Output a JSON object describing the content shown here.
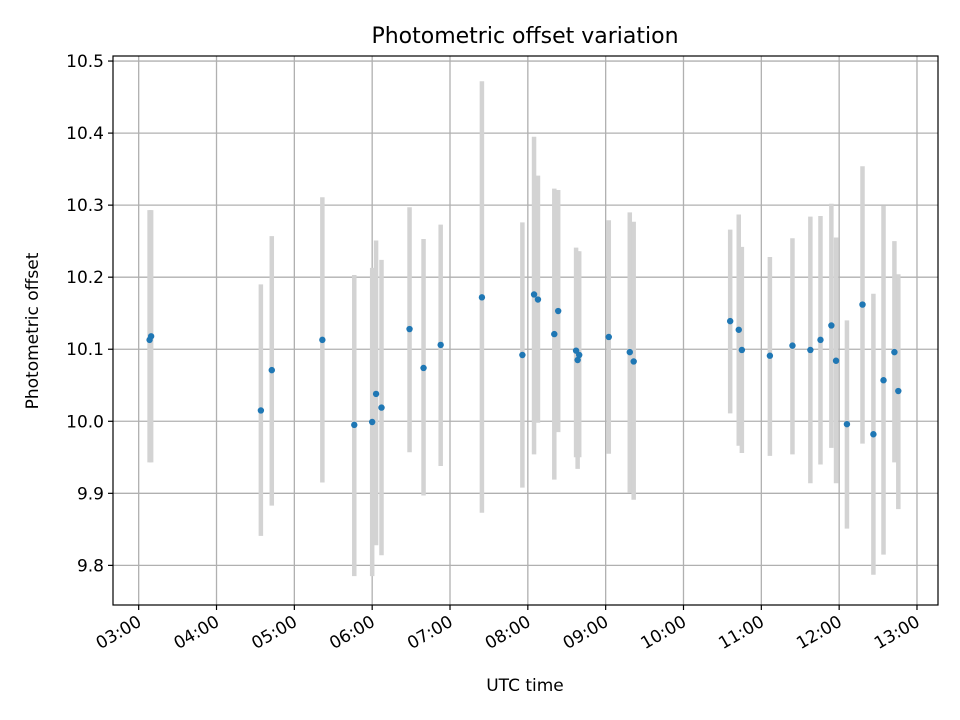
{
  "chart_data": {
    "type": "scatter",
    "title": "Photometric offset variation",
    "xlabel": "UTC time",
    "ylabel": "Photometric offset",
    "xlim": [
      2.67,
      13.27
    ],
    "ylim": [
      9.745,
      10.507
    ],
    "x_unit": "hours (UTC)",
    "grid": true,
    "marker_color": "#1f77b4",
    "errorbar_color": "#d3d3d3",
    "x_ticks": [
      {
        "value": 3,
        "label": "03:00"
      },
      {
        "value": 4,
        "label": "04:00"
      },
      {
        "value": 5,
        "label": "05:00"
      },
      {
        "value": 6,
        "label": "06:00"
      },
      {
        "value": 7,
        "label": "07:00"
      },
      {
        "value": 8,
        "label": "08:00"
      },
      {
        "value": 9,
        "label": "09:00"
      },
      {
        "value": 10,
        "label": "10:00"
      },
      {
        "value": 11,
        "label": "11:00"
      },
      {
        "value": 12,
        "label": "12:00"
      },
      {
        "value": 13,
        "label": "13:00"
      }
    ],
    "y_ticks": [
      {
        "value": 9.8,
        "label": "9.8"
      },
      {
        "value": 9.9,
        "label": "9.9"
      },
      {
        "value": 10.0,
        "label": "10.0"
      },
      {
        "value": 10.1,
        "label": "10.1"
      },
      {
        "value": 10.2,
        "label": "10.2"
      },
      {
        "value": 10.3,
        "label": "10.3"
      },
      {
        "value": 10.4,
        "label": "10.4"
      },
      {
        "value": 10.5,
        "label": "10.5"
      }
    ],
    "points": [
      {
        "x": 3.14,
        "y": 10.113,
        "ylo": 9.943,
        "yhi": 10.293
      },
      {
        "x": 3.16,
        "y": 10.118,
        "ylo": 9.943,
        "yhi": 10.293
      },
      {
        "x": 4.57,
        "y": 10.015,
        "ylo": 9.841,
        "yhi": 10.19
      },
      {
        "x": 4.71,
        "y": 10.071,
        "ylo": 9.883,
        "yhi": 10.257
      },
      {
        "x": 5.36,
        "y": 10.113,
        "ylo": 9.915,
        "yhi": 10.311
      },
      {
        "x": 5.77,
        "y": 9.995,
        "ylo": 9.785,
        "yhi": 10.203
      },
      {
        "x": 6.0,
        "y": 9.999,
        "ylo": 9.785,
        "yhi": 10.213
      },
      {
        "x": 6.05,
        "y": 10.038,
        "ylo": 9.828,
        "yhi": 10.251
      },
      {
        "x": 6.12,
        "y": 10.019,
        "ylo": 9.814,
        "yhi": 10.224
      },
      {
        "x": 6.48,
        "y": 10.128,
        "ylo": 9.957,
        "yhi": 10.297
      },
      {
        "x": 6.66,
        "y": 10.074,
        "ylo": 9.897,
        "yhi": 10.253
      },
      {
        "x": 6.88,
        "y": 10.106,
        "ylo": 9.938,
        "yhi": 10.273
      },
      {
        "x": 7.41,
        "y": 10.172,
        "ylo": 9.873,
        "yhi": 10.472
      },
      {
        "x": 7.93,
        "y": 10.092,
        "ylo": 9.908,
        "yhi": 10.276
      },
      {
        "x": 8.08,
        "y": 10.176,
        "ylo": 9.954,
        "yhi": 10.395
      },
      {
        "x": 8.13,
        "y": 10.169,
        "ylo": 9.998,
        "yhi": 10.341
      },
      {
        "x": 8.34,
        "y": 10.121,
        "ylo": 9.919,
        "yhi": 10.323
      },
      {
        "x": 8.39,
        "y": 10.153,
        "ylo": 9.985,
        "yhi": 10.321
      },
      {
        "x": 8.62,
        "y": 10.098,
        "ylo": 9.95,
        "yhi": 10.241
      },
      {
        "x": 8.64,
        "y": 10.085,
        "ylo": 9.934,
        "yhi": 10.236
      },
      {
        "x": 8.66,
        "y": 10.092,
        "ylo": 9.95,
        "yhi": 10.236
      },
      {
        "x": 9.04,
        "y": 10.117,
        "ylo": 9.955,
        "yhi": 10.279
      },
      {
        "x": 9.31,
        "y": 10.096,
        "ylo": 9.901,
        "yhi": 10.29
      },
      {
        "x": 9.36,
        "y": 10.083,
        "ylo": 9.891,
        "yhi": 10.277
      },
      {
        "x": 10.6,
        "y": 10.139,
        "ylo": 10.011,
        "yhi": 10.266
      },
      {
        "x": 10.71,
        "y": 10.127,
        "ylo": 9.966,
        "yhi": 10.287
      },
      {
        "x": 10.75,
        "y": 10.099,
        "ylo": 9.956,
        "yhi": 10.242
      },
      {
        "x": 11.11,
        "y": 10.091,
        "ylo": 9.952,
        "yhi": 10.228
      },
      {
        "x": 11.4,
        "y": 10.105,
        "ylo": 9.954,
        "yhi": 10.254
      },
      {
        "x": 11.63,
        "y": 10.099,
        "ylo": 9.914,
        "yhi": 10.284
      },
      {
        "x": 11.76,
        "y": 10.113,
        "ylo": 9.94,
        "yhi": 10.285
      },
      {
        "x": 11.9,
        "y": 10.133,
        "ylo": 9.963,
        "yhi": 10.302
      },
      {
        "x": 11.96,
        "y": 10.084,
        "ylo": 9.914,
        "yhi": 10.255
      },
      {
        "x": 12.1,
        "y": 9.996,
        "ylo": 9.851,
        "yhi": 10.14
      },
      {
        "x": 12.3,
        "y": 10.162,
        "ylo": 9.969,
        "yhi": 10.354
      },
      {
        "x": 12.44,
        "y": 9.982,
        "ylo": 9.787,
        "yhi": 10.177
      },
      {
        "x": 12.57,
        "y": 10.057,
        "ylo": 9.815,
        "yhi": 10.299
      },
      {
        "x": 12.71,
        "y": 10.096,
        "ylo": 9.943,
        "yhi": 10.25
      },
      {
        "x": 12.76,
        "y": 10.042,
        "ylo": 9.878,
        "yhi": 10.204
      }
    ]
  }
}
